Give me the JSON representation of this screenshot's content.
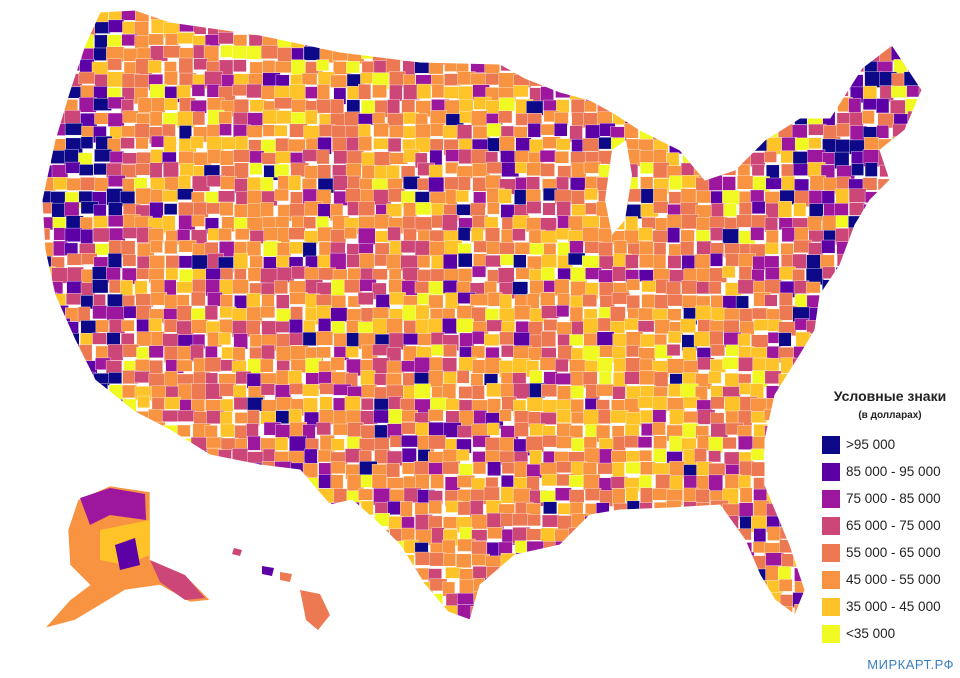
{
  "legend": {
    "title": "Условные знаки",
    "subtitle": "(в долларах)",
    "items": [
      {
        "label": ">95 000",
        "color": "#0d0887"
      },
      {
        "label": "85 000 - 95 000",
        "color": "#5c01a6"
      },
      {
        "label": "75 000 - 85 000",
        "color": "#9c179e"
      },
      {
        "label": "65 000 - 75 000",
        "color": "#cc4778"
      },
      {
        "label": "55 000 - 65 000",
        "color": "#ed7953"
      },
      {
        "label": "45 000 - 55 000",
        "color": "#f89441"
      },
      {
        "label": "35 000 - 45 000",
        "color": "#fdc328"
      },
      {
        "label": "<35 000",
        "color": "#f0f921"
      }
    ]
  },
  "credit": "МИРКАРТ.РФ"
}
